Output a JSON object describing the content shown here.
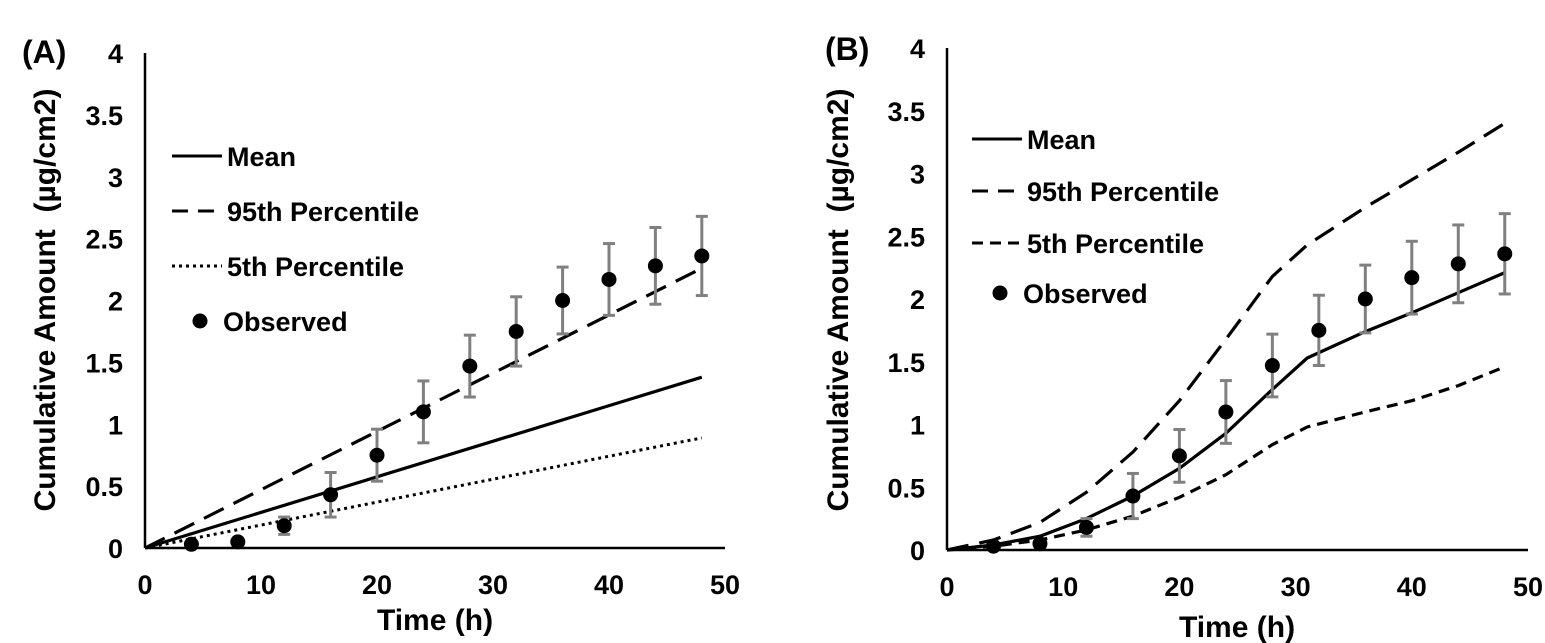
{
  "chart_data": [
    {
      "type": "line",
      "panel_label": "(A)",
      "xlabel": "Time (h)",
      "ylabel": "Cumulative Amount  (µg/cm2)",
      "xlim": [
        0,
        50
      ],
      "ylim": [
        0,
        4
      ],
      "x_ticks": [
        "0",
        "10",
        "20",
        "30",
        "40",
        "50"
      ],
      "y_ticks": [
        "0",
        "0.5",
        "1",
        "1.5",
        "2",
        "2.5",
        "3",
        "3.5",
        "4"
      ],
      "grid": false,
      "legend_position": "top-left",
      "series": [
        {
          "name": "Mean",
          "style": "solid",
          "x": [
            0,
            48
          ],
          "y": [
            0,
            1.38
          ]
        },
        {
          "name": "95th Percentile",
          "style": "long-dash",
          "x": [
            0,
            48
          ],
          "y": [
            0,
            2.26
          ]
        },
        {
          "name": "5th Percentile",
          "style": "dotted",
          "x": [
            0,
            48
          ],
          "y": [
            0,
            0.89
          ]
        },
        {
          "name": "Observed",
          "style": "points",
          "x": [
            4,
            8,
            12,
            16,
            20,
            24,
            28,
            32,
            36,
            40,
            44,
            48
          ],
          "y": [
            0.03,
            0.05,
            0.18,
            0.43,
            0.75,
            1.1,
            1.47,
            1.75,
            2.0,
            2.17,
            2.28,
            2.36
          ],
          "error": [
            0.02,
            0.02,
            0.07,
            0.18,
            0.21,
            0.25,
            0.25,
            0.28,
            0.27,
            0.29,
            0.31,
            0.32
          ]
        }
      ]
    },
    {
      "type": "line",
      "panel_label": "(B)",
      "xlabel": "Time (h)",
      "ylabel": "Cumulative Amount  (µg/cm2)",
      "xlim": [
        0,
        50
      ],
      "ylim": [
        0,
        4
      ],
      "x_ticks": [
        "0",
        "10",
        "20",
        "30",
        "40",
        "50"
      ],
      "y_ticks": [
        "0",
        "0.5",
        "1",
        "1.5",
        "2",
        "2.5",
        "3",
        "3.5",
        "4"
      ],
      "grid": false,
      "legend_position": "top-left",
      "series": [
        {
          "name": "Mean",
          "style": "solid",
          "x": [
            0,
            4,
            8,
            12,
            16,
            20,
            24,
            28,
            31,
            36,
            40,
            44,
            48
          ],
          "y": [
            0,
            0.04,
            0.11,
            0.25,
            0.43,
            0.65,
            0.93,
            1.28,
            1.53,
            1.74,
            1.89,
            2.05,
            2.21
          ]
        },
        {
          "name": "95th Percentile",
          "style": "long-dash",
          "x": [
            0,
            4,
            8,
            12,
            16,
            20,
            24,
            28,
            31,
            36,
            40,
            44,
            48
          ],
          "y": [
            0,
            0.08,
            0.22,
            0.46,
            0.78,
            1.19,
            1.68,
            2.18,
            2.43,
            2.73,
            2.95,
            3.17,
            3.4
          ]
        },
        {
          "name": "5th Percentile",
          "style": "short-dash",
          "x": [
            0,
            4,
            8,
            12,
            16,
            20,
            24,
            28,
            31,
            36,
            40,
            44,
            48
          ],
          "y": [
            0,
            0.03,
            0.08,
            0.16,
            0.27,
            0.42,
            0.6,
            0.84,
            0.98,
            1.1,
            1.19,
            1.31,
            1.46
          ]
        },
        {
          "name": "Observed",
          "style": "points",
          "x": [
            4,
            8,
            12,
            16,
            20,
            24,
            28,
            32,
            36,
            40,
            44,
            48
          ],
          "y": [
            0.03,
            0.05,
            0.18,
            0.43,
            0.75,
            1.1,
            1.47,
            1.75,
            2.0,
            2.17,
            2.28,
            2.36
          ],
          "error": [
            0.02,
            0.02,
            0.07,
            0.18,
            0.21,
            0.25,
            0.25,
            0.28,
            0.27,
            0.29,
            0.31,
            0.32
          ]
        }
      ]
    }
  ]
}
